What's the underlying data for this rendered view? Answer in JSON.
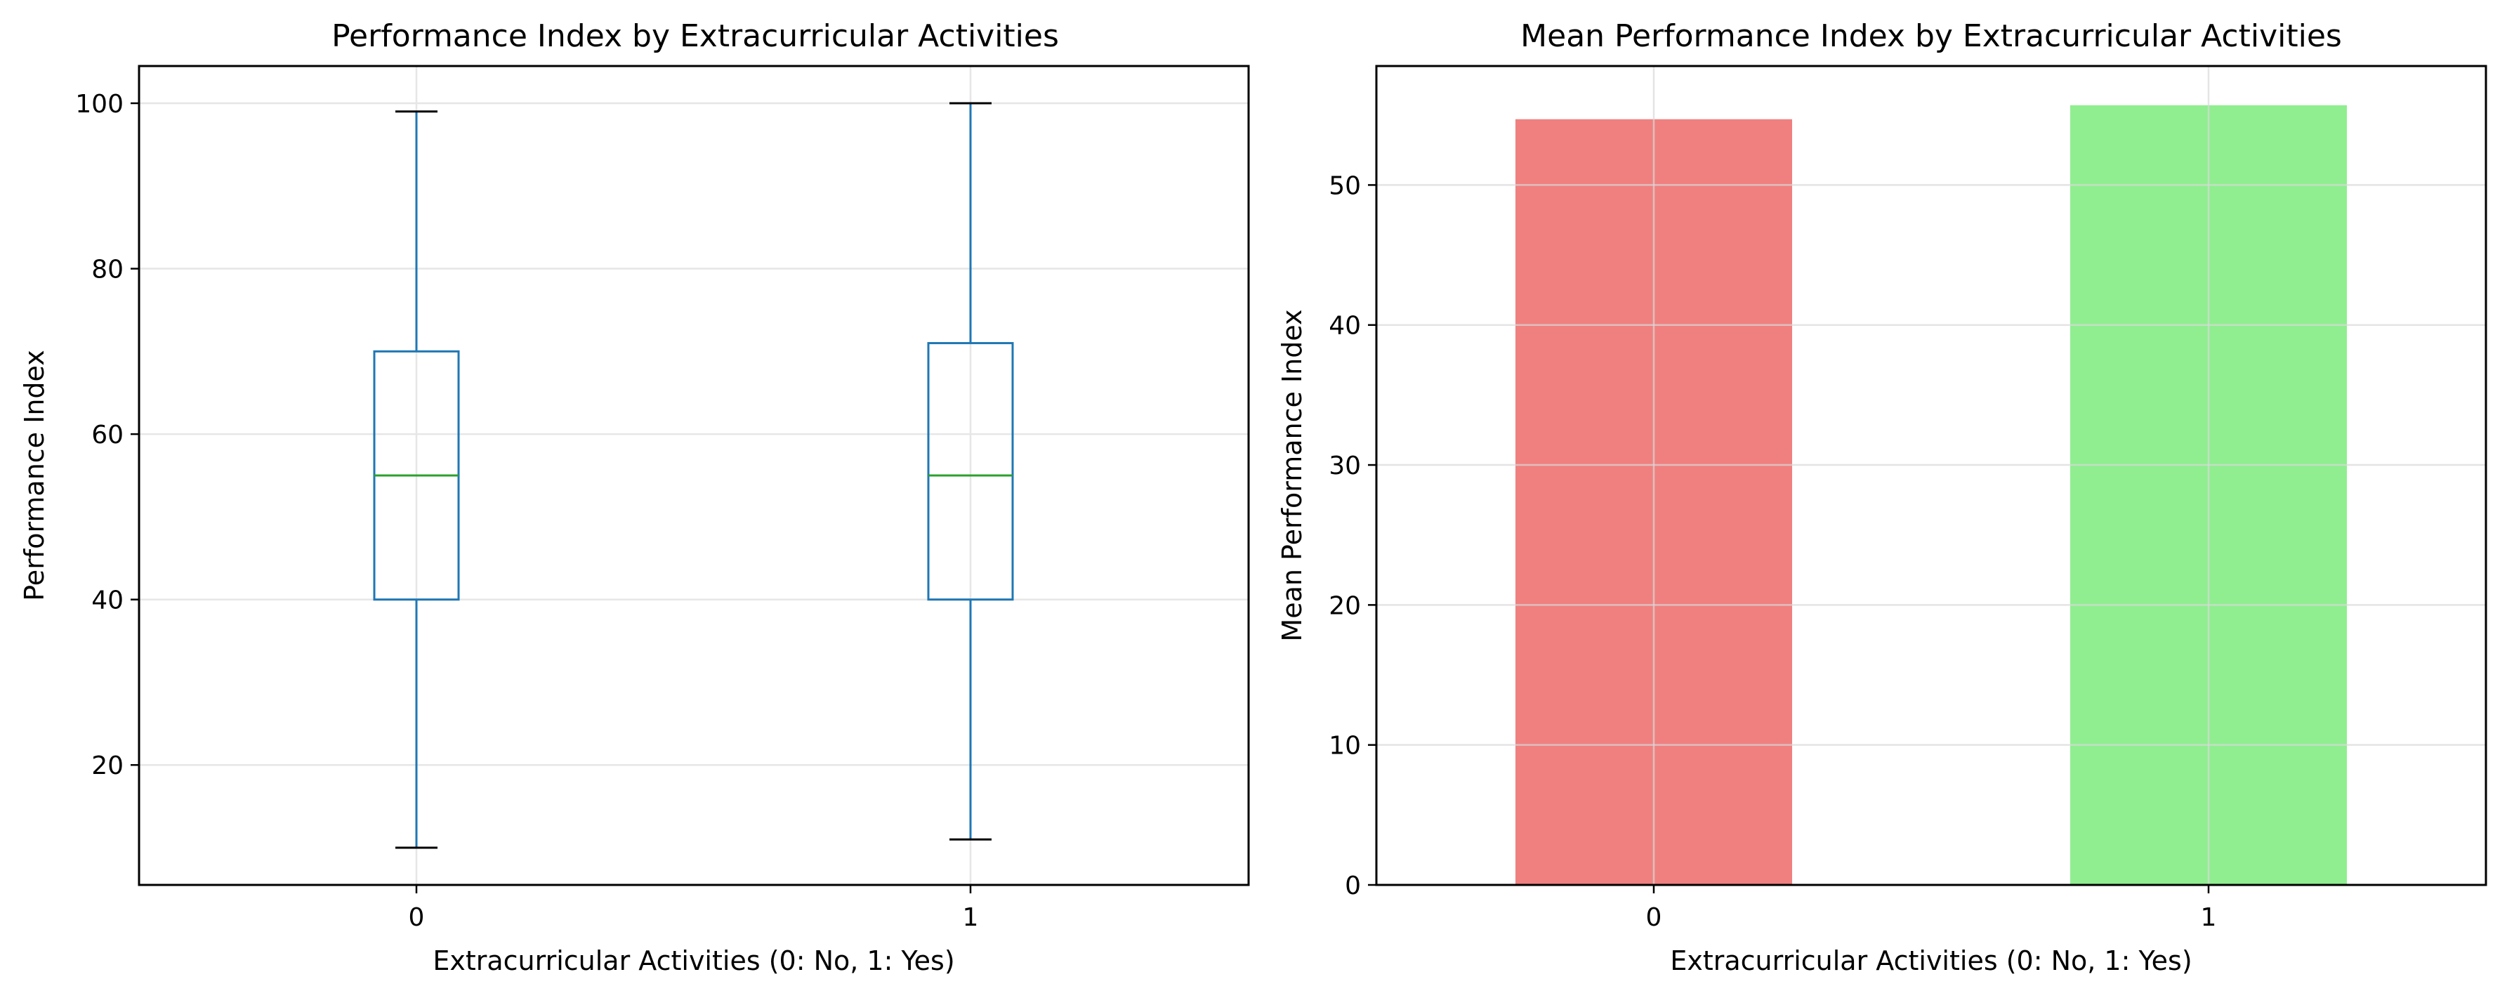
{
  "chart_data": [
    {
      "type": "box",
      "title": "Performance Index by Extracurricular Activities",
      "xlabel": "Extracurricular Activities (0: No, 1: Yes)",
      "ylabel": "Performance Index",
      "categories": [
        "0",
        "1"
      ],
      "ylim": [
        5.5,
        104.5
      ],
      "yticks": [
        "20",
        "40",
        "60",
        "80",
        "100"
      ],
      "boxes": [
        {
          "category": "0",
          "min": 10,
          "q1": 40,
          "median": 55,
          "q3": 70,
          "max": 99
        },
        {
          "category": "1",
          "min": 11,
          "q1": 40,
          "median": 55,
          "q3": 71,
          "max": 100
        }
      ],
      "grid": true,
      "colors": {
        "box": "#1f77b4",
        "median": "#2ca02c",
        "caps": "#000000"
      }
    },
    {
      "type": "bar",
      "title": "Mean Performance Index by Extracurricular Activities",
      "xlabel": "Extracurricular Activities (0: No, 1: Yes)",
      "ylabel": "Mean Performance Index",
      "categories": [
        "0",
        "1"
      ],
      "values": [
        54.7,
        55.7
      ],
      "ylim": [
        0,
        58.5
      ],
      "yticks": [
        "0",
        "10",
        "20",
        "30",
        "40",
        "50"
      ],
      "grid": true,
      "colors": [
        "#f08080",
        "#90ee90"
      ]
    }
  ]
}
